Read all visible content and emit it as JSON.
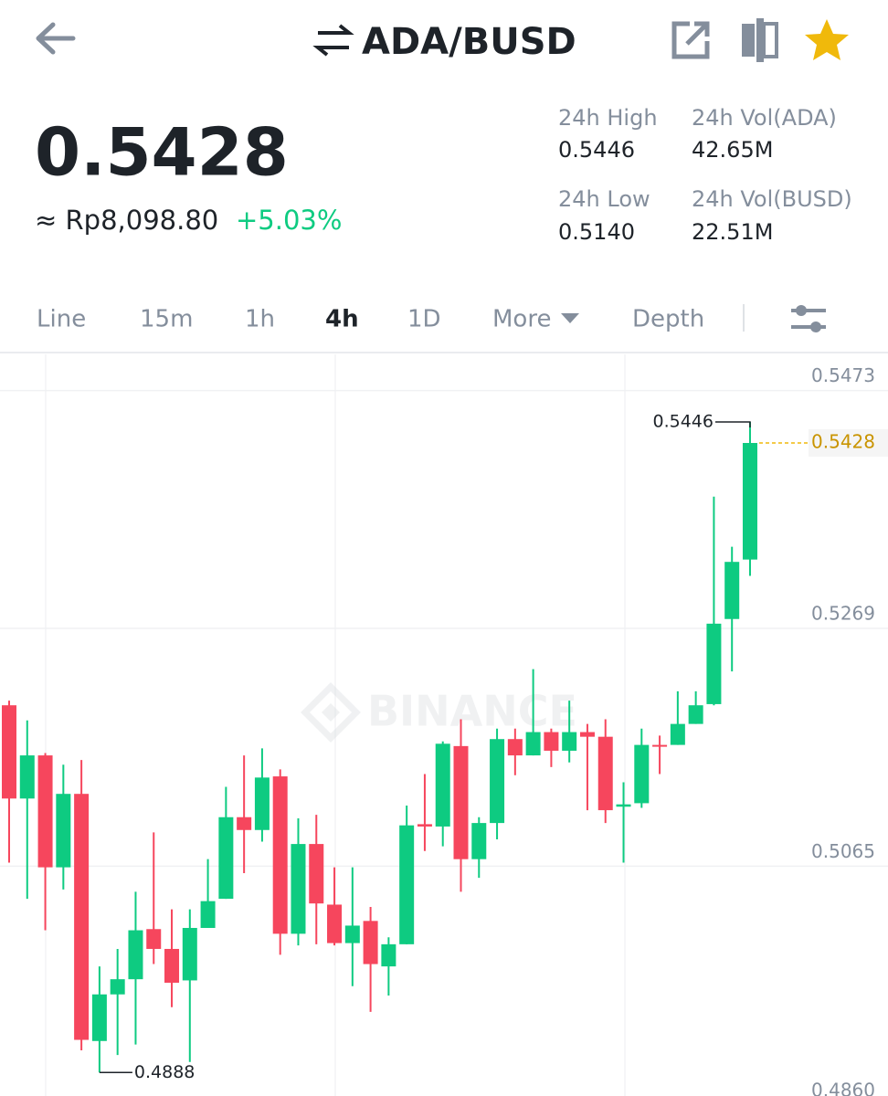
{
  "header": {
    "pair": "ADA/BUSD",
    "price": "0.5428",
    "fiat_price": "≈ Rp8,098.80",
    "change": "+5.03%",
    "stats": [
      {
        "label": "24h High",
        "value": "0.5446"
      },
      {
        "label": "24h Vol(ADA)",
        "value": "42.65M"
      },
      {
        "label": "24h Low",
        "value": "0.5140"
      },
      {
        "label": "24h Vol(BUSD)",
        "value": "22.51M"
      }
    ]
  },
  "tabs": [
    "Line",
    "15m",
    "1h",
    "4h",
    "1D",
    "More",
    "Depth"
  ],
  "active_tab": "4h",
  "chart_data": {
    "type": "candlestick",
    "open": [
      0.5203,
      0.5123,
      0.516,
      0.5064,
      0.5127,
      0.4915,
      0.4955,
      0.4968,
      0.5011,
      0.4994,
      0.4967,
      0.5012,
      0.5037,
      0.5107,
      0.5096,
      0.5142,
      0.5007,
      0.5084,
      0.5032,
      0.4999,
      0.5018,
      0.4979,
      0.4998,
      0.5101,
      0.5099,
      0.5168,
      0.5071,
      0.5102,
      0.5174,
      0.516,
      0.518,
      0.5164,
      0.518,
      0.5176,
      0.5116,
      0.5119,
      0.5169,
      0.5169,
      0.5187,
      0.5204,
      0.5277,
      0.5328
    ],
    "high": [
      0.5207,
      0.519,
      0.5162,
      0.5152,
      0.5156,
      0.4979,
      0.4994,
      0.5043,
      0.5094,
      0.5028,
      0.5028,
      0.5071,
      0.5133,
      0.516,
      0.5166,
      0.5148,
      0.5106,
      0.5109,
      0.5064,
      0.5064,
      0.503,
      0.5004,
      0.5117,
      0.5144,
      0.5172,
      0.5191,
      0.5107,
      0.5183,
      0.5183,
      0.5234,
      0.5183,
      0.5207,
      0.5187,
      0.5191,
      0.5137,
      0.5183,
      0.5177,
      0.5215,
      0.5215,
      0.5382,
      0.5339,
      0.5446
    ],
    "low": [
      0.5068,
      0.5037,
      0.501,
      0.5045,
      0.4907,
      0.4888,
      0.4903,
      0.4912,
      0.4981,
      0.4944,
      0.4897,
      0.5012,
      0.5037,
      0.5059,
      0.5086,
      0.4989,
      0.4997,
      0.4998,
      0.4997,
      0.4962,
      0.494,
      0.4954,
      0.4998,
      0.5078,
      0.5082,
      0.5043,
      0.5055,
      0.5088,
      0.5143,
      0.516,
      0.515,
      0.5154,
      0.5113,
      0.5102,
      0.5068,
      0.5115,
      0.5144,
      0.5169,
      0.5187,
      0.5203,
      0.5232,
      0.5314
    ],
    "close": [
      0.5123,
      0.516,
      0.5064,
      0.5127,
      0.4916,
      0.4955,
      0.4968,
      0.501,
      0.4994,
      0.4965,
      0.5012,
      0.5035,
      0.5107,
      0.5096,
      0.5141,
      0.5007,
      0.5084,
      0.5033,
      0.4999,
      0.5014,
      0.4981,
      0.4998,
      0.51,
      0.5099,
      0.517,
      0.5071,
      0.5102,
      0.5174,
      0.516,
      0.518,
      0.5164,
      0.518,
      0.5176,
      0.5113,
      0.5118,
      0.5169,
      0.5168,
      0.5187,
      0.5203,
      0.5273,
      0.5326,
      0.5428
    ],
    "up_color": "#0ecb81",
    "down_color": "#f6465d",
    "ylim": [
      0.486,
      0.5504
    ],
    "yticks": [
      0.5473,
      0.5269,
      0.5065,
      {
        "value": 0.486,
        "label": "0.4860"
      }
    ],
    "grid": true,
    "watermark": "BINANCE"
  }
}
